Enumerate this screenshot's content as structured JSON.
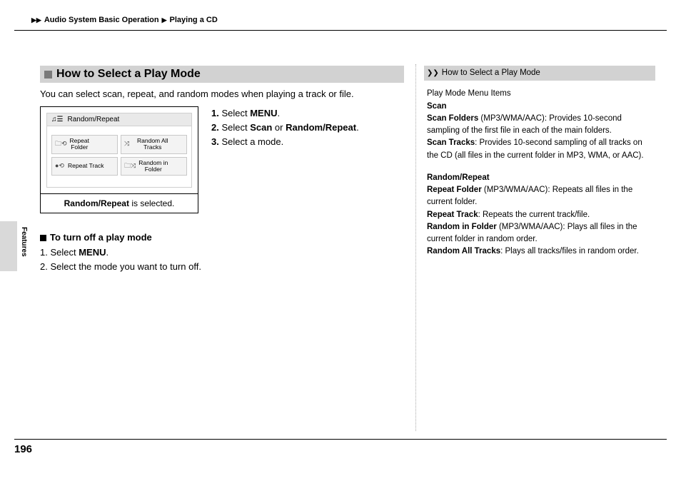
{
  "breadcrumb": {
    "section": "Audio System Basic Operation",
    "subsection": "Playing a CD"
  },
  "page_number": "196",
  "side_tab": "Features",
  "heading": "How to Select a Play Mode",
  "intro": "You can select scan, repeat, and random modes when playing a track or file.",
  "steps": {
    "s1_pre": "Select ",
    "s1_bold": "MENU",
    "s1_post": ".",
    "s2_pre": "Select ",
    "s2_b1": "Scan",
    "s2_mid": " or ",
    "s2_b2": "Random/Repeat",
    "s2_post": ".",
    "s3": "Select a mode."
  },
  "figure": {
    "header": "Random/Repeat",
    "buttons": {
      "repeat_folder": "Repeat\nFolder",
      "random_all": "Random All\nTracks",
      "repeat_track": "Repeat Track",
      "random_in_folder": "Random in\nFolder"
    },
    "caption_bold": "Random/Repeat",
    "caption_rest": " is selected."
  },
  "turnoff": {
    "heading": "To turn off a play mode",
    "s1_pre": "Select ",
    "s1_bold": "MENU",
    "s1_post": ".",
    "s2": "Select the mode you want to turn off."
  },
  "sidebar": {
    "title": "How to Select a Play Mode",
    "menu_items_label": "Play Mode Menu Items",
    "scan_label": "Scan",
    "scan_folders_b": "Scan Folders",
    "scan_folders_rest": " (MP3/WMA/AAC): Provides 10-second sampling of the first file in each of the main folders.",
    "scan_tracks_b": "Scan Tracks",
    "scan_tracks_rest": ": Provides 10-second sampling of all tracks on the CD (all files in the current folder in MP3, WMA, or AAC).",
    "rr_label": "Random/Repeat",
    "repeat_folder_b": "Repeat Folder",
    "repeat_folder_rest": " (MP3/WMA/AAC): Repeats all files in the current folder.",
    "repeat_track_b": "Repeat Track",
    "repeat_track_rest": ": Repeats the current track/file.",
    "random_in_folder_b": "Random in Folder",
    "random_in_folder_rest": " (MP3/WMA/AAC): Plays all files in the current folder in random order.",
    "random_all_b": "Random All Tracks",
    "random_all_rest": ": Plays all tracks/files in random order."
  }
}
